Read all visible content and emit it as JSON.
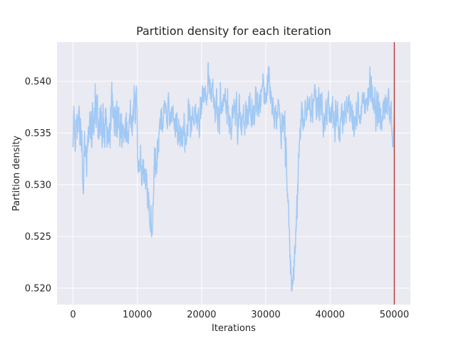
{
  "chart_data": {
    "type": "line",
    "title": "Partition density for each iteration",
    "xlabel": "Iterations",
    "ylabel": "Partition density",
    "xlim": [
      -2500,
      52500
    ],
    "ylim": [
      0.5184,
      0.5438
    ],
    "xticks": [
      0,
      10000,
      20000,
      30000,
      40000,
      50000
    ],
    "yticks": [
      0.52,
      0.525,
      0.53,
      0.535,
      0.54
    ],
    "xtick_labels": [
      "0",
      "10000",
      "20000",
      "30000",
      "40000",
      "50000"
    ],
    "ytick_labels": [
      "0.520",
      "0.525",
      "0.530",
      "0.535",
      "0.540"
    ],
    "grid": true,
    "background": "#eaeaf2",
    "series": [
      {
        "color": "#a1c9f4",
        "anchors": {
          "x": [
            0,
            300,
            600,
            1000,
            1500,
            2200,
            3000,
            4000,
            5000,
            6000,
            7000,
            8000,
            9000,
            9800,
            10300,
            11000,
            11600,
            12000,
            12300,
            12700,
            13500,
            14500,
            15500,
            16500,
            17500,
            18500,
            19500,
            20500,
            21500,
            22500,
            23500,
            24500,
            25500,
            26500,
            27500,
            28200,
            28800,
            29500,
            30300,
            31000,
            31800,
            32500,
            33000,
            33400,
            33700,
            34000,
            34400,
            34800,
            35300,
            36000,
            37000,
            37500,
            38500,
            39500,
            40500,
            41500,
            42500,
            43500,
            44500,
            45500,
            46200,
            47000,
            48000,
            48800,
            49300,
            49800,
            50000
          ],
          "y": [
            0.5335,
            0.536,
            0.535,
            0.5365,
            0.5325,
            0.5345,
            0.537,
            0.5365,
            0.5355,
            0.5365,
            0.536,
            0.5355,
            0.5365,
            0.5375,
            0.532,
            0.5305,
            0.5295,
            0.528,
            0.5255,
            0.532,
            0.5355,
            0.5365,
            0.5365,
            0.5355,
            0.536,
            0.536,
            0.5365,
            0.5395,
            0.5395,
            0.5375,
            0.5375,
            0.5365,
            0.5375,
            0.5365,
            0.5375,
            0.538,
            0.5385,
            0.539,
            0.5395,
            0.5375,
            0.5365,
            0.5355,
            0.5335,
            0.5305,
            0.5235,
            0.521,
            0.5225,
            0.5255,
            0.5355,
            0.536,
            0.5375,
            0.5385,
            0.5375,
            0.5365,
            0.5365,
            0.536,
            0.5375,
            0.5365,
            0.5375,
            0.5375,
            0.5395,
            0.5385,
            0.537,
            0.5375,
            0.5365,
            0.5355,
            0.5365
          ],
          "noise": [
            0.0022,
            0.0022,
            0.0022,
            0.0022,
            0.0025,
            0.0025,
            0.0022,
            0.0022,
            0.0022,
            0.0022,
            0.0022,
            0.0022,
            0.0022,
            0.0022,
            0.0022,
            0.0018,
            0.0018,
            0.0018,
            0.0018,
            0.0022,
            0.0018,
            0.0016,
            0.0016,
            0.0016,
            0.0016,
            0.0016,
            0.0016,
            0.0014,
            0.0014,
            0.0016,
            0.0016,
            0.0016,
            0.0016,
            0.0016,
            0.0018,
            0.0018,
            0.0018,
            0.0018,
            0.0018,
            0.0016,
            0.0016,
            0.0016,
            0.0022,
            0.0022,
            0.0016,
            0.0014,
            0.0016,
            0.0022,
            0.0018,
            0.0016,
            0.0016,
            0.0016,
            0.0016,
            0.0016,
            0.0016,
            0.0016,
            0.0016,
            0.0016,
            0.0016,
            0.0016,
            0.0018,
            0.0018,
            0.0016,
            0.0016,
            0.0016,
            0.0016,
            0.0016
          ]
        },
        "step": 40,
        "range": [
          0.5195,
          0.5425
        ]
      }
    ],
    "vline": {
      "x": 50000,
      "color": "#b5443e"
    }
  }
}
